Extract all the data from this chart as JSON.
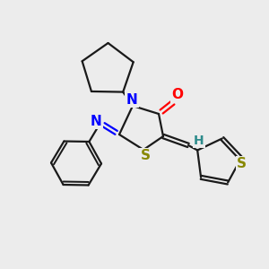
{
  "background_color": "#ececec",
  "bond_color": "#1a1a1a",
  "atom_colors": {
    "O": "#ff0000",
    "N": "#0000ff",
    "S": "#888800",
    "H": "#2e8b8b",
    "C": "#1a1a1a"
  },
  "figsize": [
    3.0,
    3.0
  ],
  "dpi": 100,
  "lw": 1.6,
  "fs": 11
}
